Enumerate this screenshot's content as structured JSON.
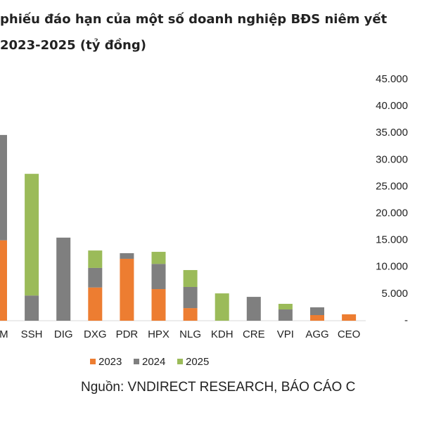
{
  "chart_data": {
    "type": "stacked_bar",
    "title": [
      "phiếu đáo hạn của một số doanh nghiệp BĐS niêm yết",
      "2023-2025 (tỷ đồng)"
    ],
    "categories": [
      "HM",
      "SSH",
      "DIG",
      "DXG",
      "PDR",
      "HPX",
      "NLG",
      "KDH",
      "CRE",
      "VPI",
      "AGG",
      "CEO"
    ],
    "series": [
      {
        "name": "2023",
        "color": "#ed7d31",
        "values": [
          15000,
          null,
          null,
          6200,
          11550,
          5900,
          2350,
          null,
          null,
          null,
          1050,
          1200
        ]
      },
      {
        "name": "2024",
        "color": "#7f7f7f",
        "values": [
          19650,
          4700,
          15500,
          3650,
          1050,
          4700,
          3950,
          null,
          4450,
          2100,
          1450,
          null
        ]
      },
      {
        "name": "2025",
        "color": "#9bbb59",
        "values": [
          null,
          22700,
          null,
          3250,
          null,
          2250,
          3150,
          5100,
          null,
          1050,
          null,
          null
        ]
      }
    ],
    "ylim": [
      0,
      45000
    ],
    "yticks": [
      {
        "value": 0,
        "label": "-"
      },
      {
        "value": 5000,
        "label": "5.000"
      },
      {
        "value": 10000,
        "label": "10.000"
      },
      {
        "value": 15000,
        "label": "15.000"
      },
      {
        "value": 20000,
        "label": "20.000"
      },
      {
        "value": 25000,
        "label": "25.000"
      },
      {
        "value": 30000,
        "label": "30.000"
      },
      {
        "value": 35000,
        "label": "35.000"
      },
      {
        "value": 40000,
        "label": "40.000"
      },
      {
        "value": 45000,
        "label": "45.000"
      }
    ],
    "legend": "bottom",
    "source": "Nguồn: VNDIRECT RESEARCH, BÁO CÁO C"
  }
}
